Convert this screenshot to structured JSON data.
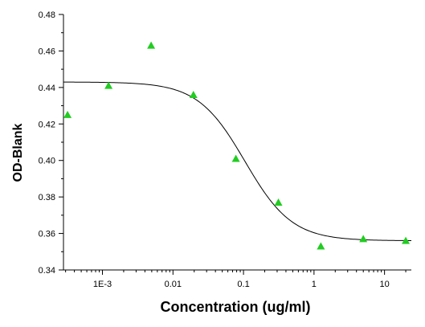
{
  "chart_data": {
    "type": "scatter",
    "title": "",
    "xlabel": "Concentration (ug/ml)",
    "ylabel": "OD-Blank",
    "x_scale": "log",
    "xlim": [
      0.00028,
      24
    ],
    "ylim": [
      0.34,
      0.48
    ],
    "x_ticks": [
      {
        "value": 0.001,
        "label": "1E-3"
      },
      {
        "value": 0.01,
        "label": "0.01"
      },
      {
        "value": 0.1,
        "label": "0.1"
      },
      {
        "value": 1,
        "label": "1"
      },
      {
        "value": 10,
        "label": "10"
      }
    ],
    "y_ticks": [
      {
        "value": 0.34,
        "label": "0.34"
      },
      {
        "value": 0.36,
        "label": "0.36"
      },
      {
        "value": 0.38,
        "label": "0.38"
      },
      {
        "value": 0.4,
        "label": "0.40"
      },
      {
        "value": 0.42,
        "label": "0.42"
      },
      {
        "value": 0.44,
        "label": "0.44"
      },
      {
        "value": 0.46,
        "label": "0.46"
      },
      {
        "value": 0.48,
        "label": "0.48"
      }
    ],
    "grid": false,
    "legend": "none",
    "series": [
      {
        "marker": "triangle",
        "color": "#22cc22",
        "points": [
          {
            "x": 0.00032,
            "y": 0.425
          },
          {
            "x": 0.00122,
            "y": 0.441
          },
          {
            "x": 0.0049,
            "y": 0.463
          },
          {
            "x": 0.0195,
            "y": 0.436
          },
          {
            "x": 0.078,
            "y": 0.401
          },
          {
            "x": 0.3125,
            "y": 0.377
          },
          {
            "x": 1.25,
            "y": 0.353
          },
          {
            "x": 5,
            "y": 0.357
          },
          {
            "x": 20,
            "y": 0.356
          }
        ]
      }
    ],
    "fit_curve": {
      "model": "4PL",
      "color": "#000000",
      "top": 0.443,
      "bottom": 0.356,
      "ec50": 0.105,
      "hill": 1.3
    }
  }
}
